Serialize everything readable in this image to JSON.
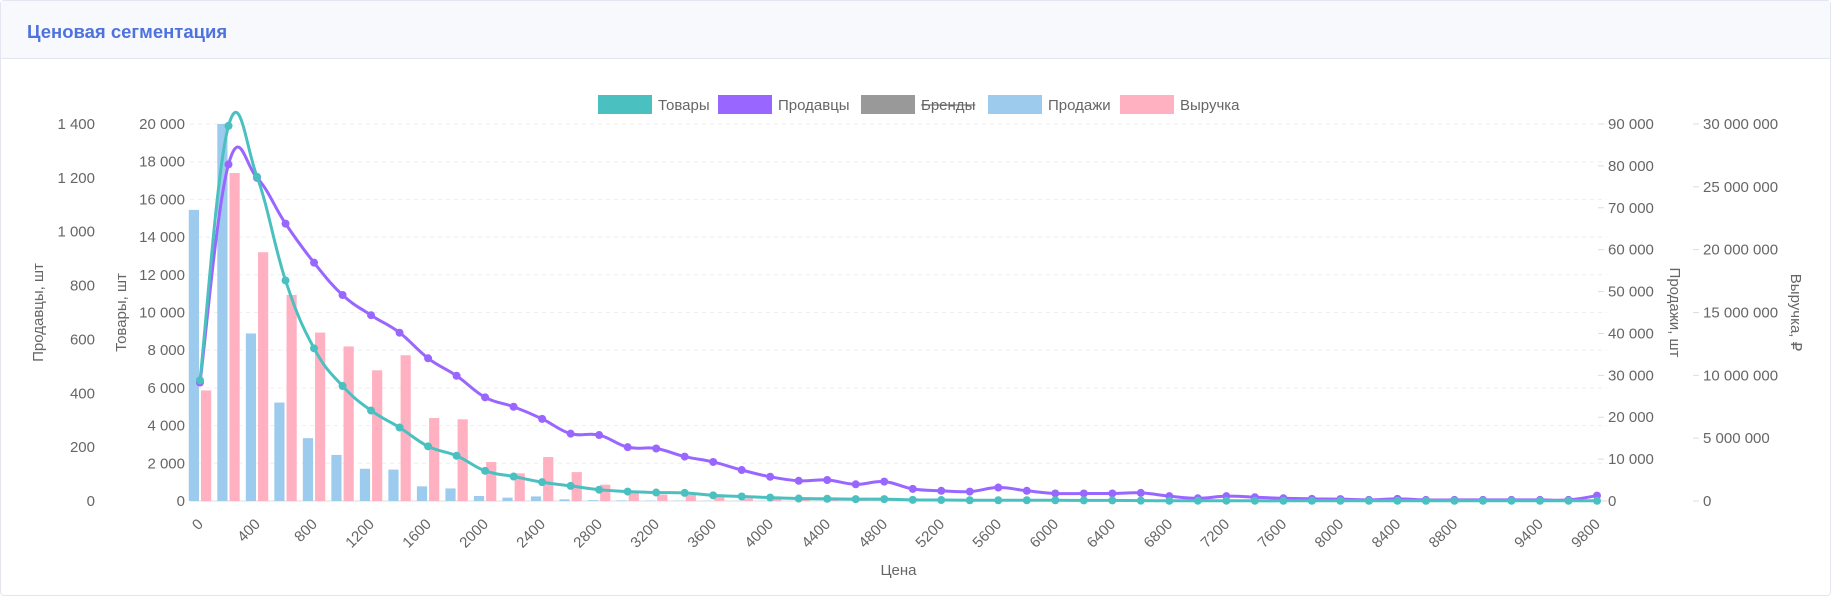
{
  "header": {
    "title": "Ценовая сегментация"
  },
  "colors": {
    "products": "#4bc0c0",
    "sellers": "#9966ff",
    "brands": "#999999",
    "sales": "#9ccbee",
    "revenue": "#ffb1c1",
    "title": "#4e73df"
  },
  "chart_data": {
    "type": "bar",
    "xlabel": "Цена",
    "categories": [
      "0",
      "200",
      "400",
      "600",
      "800",
      "1000",
      "1200",
      "1400",
      "1600",
      "1800",
      "2000",
      "2200",
      "2400",
      "2600",
      "2800",
      "3000",
      "3200",
      "3400",
      "3600",
      "3800",
      "4000",
      "4200",
      "4400",
      "4600",
      "4800",
      "5000",
      "5200",
      "5400",
      "5600",
      "5800",
      "6000",
      "6200",
      "6400",
      "6600",
      "6800",
      "7000",
      "7200",
      "7400",
      "7600",
      "7800",
      "8000",
      "8200",
      "8400",
      "8600",
      "8800",
      "9000",
      "9200",
      "9400",
      "9600",
      "9800"
    ],
    "x_tick_labels": [
      "0",
      "400",
      "800",
      "1200",
      "1600",
      "2000",
      "2400",
      "2800",
      "3200",
      "3600",
      "4000",
      "4400",
      "4800",
      "5200",
      "5600",
      "6000",
      "6400",
      "6800",
      "7200",
      "7600",
      "8000",
      "8400",
      "8800",
      "9400",
      "9800"
    ],
    "legend": [
      {
        "label": "Товары",
        "series": "products",
        "hidden": false
      },
      {
        "label": "Продавцы",
        "series": "sellers",
        "hidden": false
      },
      {
        "label": "Бренды",
        "series": "brands",
        "hidden": true
      },
      {
        "label": "Продажи",
        "series": "sales",
        "hidden": false
      },
      {
        "label": "Выручка",
        "series": "revenue",
        "hidden": false
      }
    ],
    "axes": {
      "sellers": {
        "label": "Продавцы, шт",
        "side": "left",
        "min": 0,
        "max": 1400,
        "ticks": [
          "0",
          "200",
          "400",
          "600",
          "800",
          "1 000",
          "1 200",
          "1 400"
        ]
      },
      "products": {
        "label": "Товары, шт",
        "side": "left",
        "min": 0,
        "max": 20000,
        "ticks": [
          "0",
          "2 000",
          "4 000",
          "6 000",
          "8 000",
          "10 000",
          "12 000",
          "14 000",
          "16 000",
          "18 000",
          "20 000"
        ]
      },
      "sales": {
        "label": "Продажи, шт",
        "side": "right",
        "min": 0,
        "max": 90000,
        "ticks": [
          "0",
          "10 000",
          "20 000",
          "30 000",
          "40 000",
          "50 000",
          "60 000",
          "70 000",
          "80 000",
          "90 000"
        ]
      },
      "revenue": {
        "label": "Выручка, ₽",
        "side": "right",
        "min": 0,
        "max": 30000000,
        "ticks": [
          "0",
          "5 000 000",
          "10 000 000",
          "15 000 000",
          "20 000 000",
          "25 000 000",
          "30 000 000"
        ]
      }
    },
    "series": [
      {
        "key": "sales",
        "name": "Продажи",
        "type": "bar",
        "axis": "sales",
        "values": [
          69500,
          90000,
          40000,
          23500,
          15000,
          11000,
          7700,
          7500,
          3500,
          3000,
          1200,
          800,
          1100,
          400,
          200,
          150,
          100,
          80,
          60,
          50,
          40,
          40,
          30,
          30,
          30,
          25,
          20,
          20,
          20,
          20,
          15,
          15,
          15,
          15,
          15,
          10,
          10,
          10,
          10,
          10,
          10,
          10,
          10,
          10,
          10,
          10,
          10,
          10,
          10,
          10
        ]
      },
      {
        "key": "revenue",
        "name": "Выручка",
        "type": "bar",
        "axis": "revenue",
        "values": [
          8800000,
          26100000,
          19800000,
          16400000,
          13400000,
          12300000,
          10400000,
          11600000,
          6600000,
          6500000,
          3100000,
          2200000,
          3500000,
          2300000,
          1300000,
          700000,
          500000,
          500000,
          400000,
          200000,
          150000,
          150000,
          130000,
          100000,
          100000,
          80000,
          60000,
          60000,
          60000,
          50000,
          40000,
          40000,
          40000,
          40000,
          30000,
          30000,
          30000,
          30000,
          30000,
          20000,
          20000,
          20000,
          20000,
          20000,
          20000,
          20000,
          20000,
          20000,
          20000,
          20000
        ]
      },
      {
        "key": "products",
        "name": "Товары",
        "type": "line",
        "axis": "products",
        "values": [
          6400,
          19900,
          17200,
          11700,
          8100,
          6100,
          4800,
          3900,
          2900,
          2400,
          1600,
          1300,
          1000,
          800,
          600,
          500,
          450,
          430,
          300,
          240,
          180,
          130,
          120,
          100,
          100,
          60,
          50,
          40,
          40,
          40,
          40,
          30,
          30,
          20,
          10,
          15,
          15,
          10,
          10,
          10,
          10,
          10,
          10,
          10,
          10,
          10,
          10,
          10,
          10,
          10
        ]
      },
      {
        "key": "sellers",
        "name": "Продавцы",
        "type": "line",
        "axis": "sellers",
        "values": [
          440,
          1250,
          1200,
          1030,
          885,
          765,
          690,
          625,
          530,
          465,
          385,
          350,
          305,
          250,
          245,
          200,
          195,
          165,
          145,
          115,
          90,
          75,
          78,
          62,
          72,
          45,
          38,
          35,
          50,
          38,
          28,
          28,
          28,
          30,
          18,
          10,
          18,
          14,
          10,
          8,
          7,
          4,
          8,
          4,
          4,
          4,
          4,
          4,
          4,
          20
        ]
      }
    ]
  }
}
